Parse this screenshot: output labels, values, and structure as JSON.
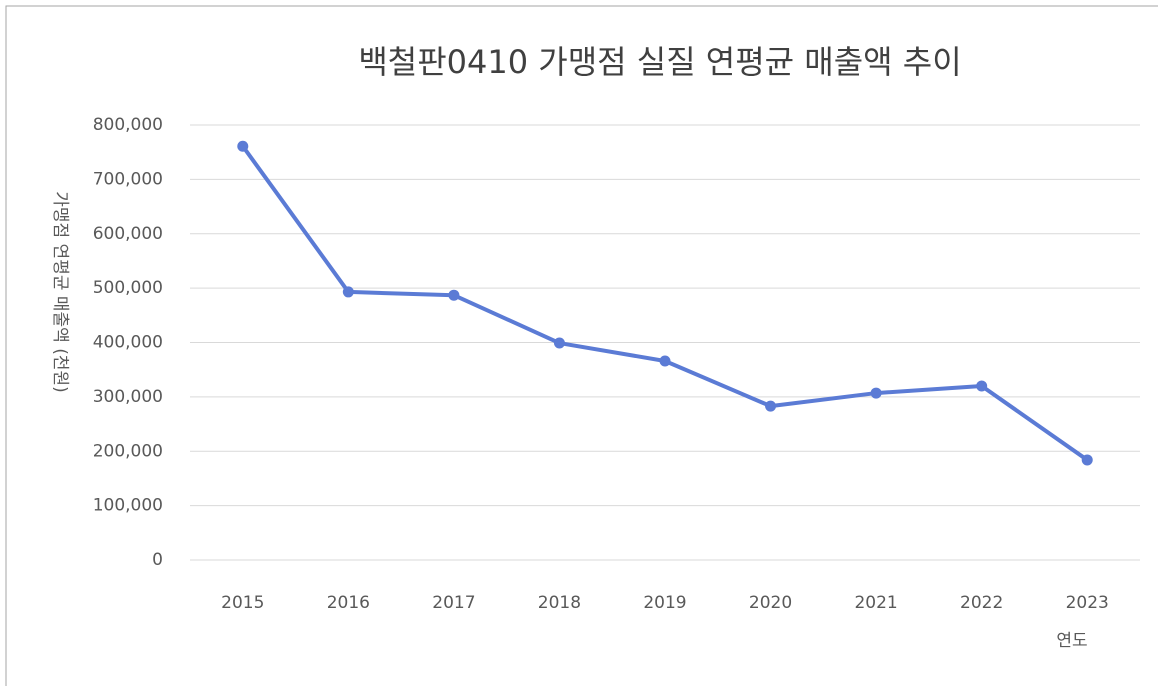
{
  "chart_data": {
    "type": "line",
    "title": "백철판0410 가맹점 실질 연평균 매출액 추이",
    "y_label": "가맹점 연평균 매출액 (천원)",
    "x_label": "연도",
    "categories": [
      "2015",
      "2016",
      "2017",
      "2018",
      "2019",
      "2020",
      "2021",
      "2022",
      "2023"
    ],
    "series": [
      {
        "name": "가맹점 실질 연평균 매출액",
        "color": "#5b7bd5",
        "values": [
          761000,
          493000,
          487000,
          399000,
          366000,
          283000,
          307000,
          320000,
          184000
        ]
      }
    ],
    "ylim": [
      0,
      800000
    ],
    "yticks": [
      0,
      {
        "value": 100000,
        "label": "100,000"
      },
      {
        "value": 200000,
        "label": "200,000"
      },
      {
        "value": 300000,
        "label": "300,000"
      },
      {
        "value": 400000,
        "label": "400,000"
      },
      {
        "value": 500000,
        "label": "500,000"
      },
      {
        "value": 600000,
        "label": "600,000"
      },
      {
        "value": 700000,
        "label": "700,000"
      },
      {
        "value": 800000,
        "label": "800,000"
      }
    ],
    "grid": true
  }
}
